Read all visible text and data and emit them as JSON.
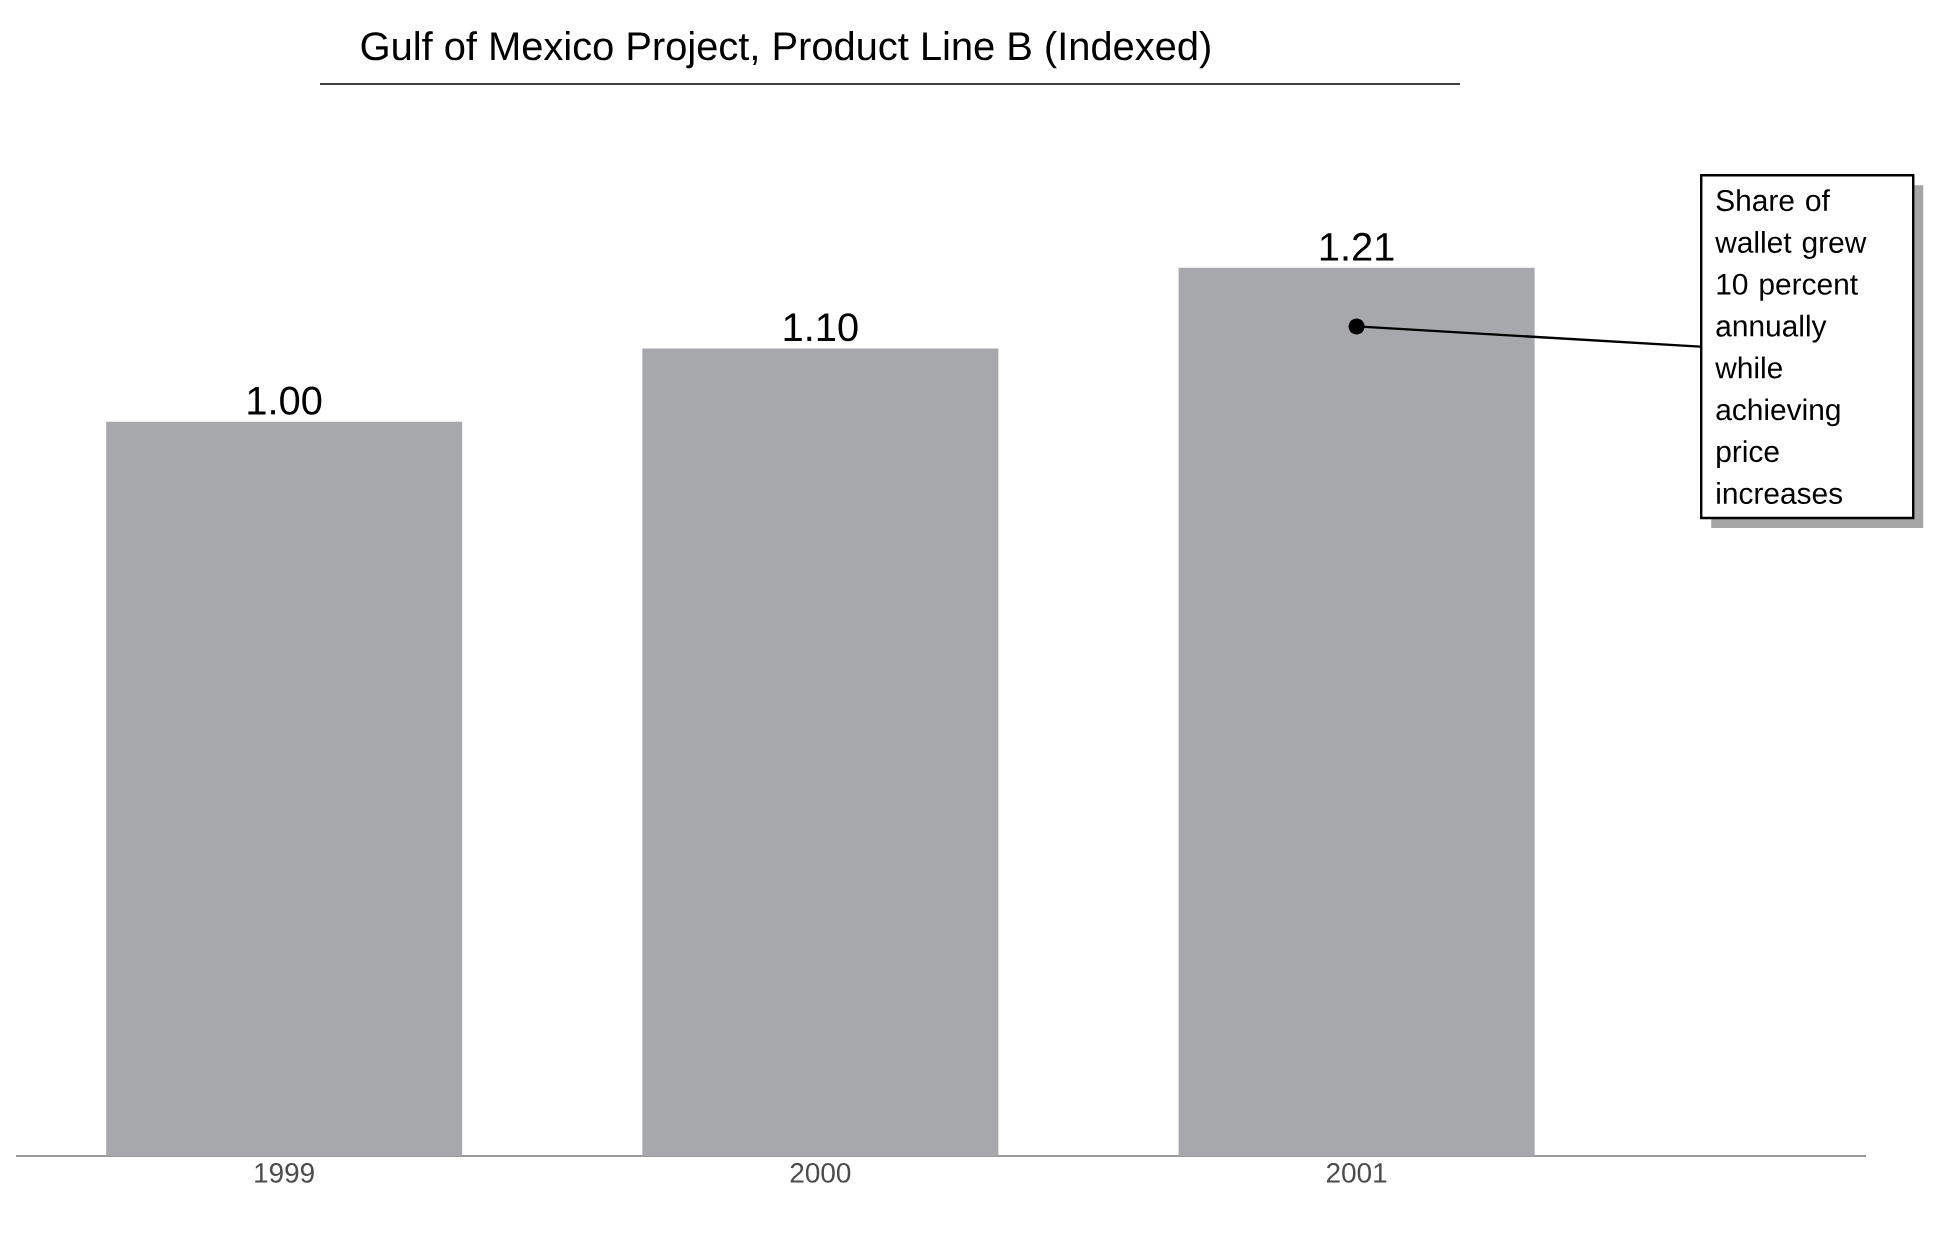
{
  "chart_data": {
    "type": "bar",
    "title": "Gulf of Mexico Project, Product Line B (Indexed)",
    "categories": [
      "1999",
      "2000",
      "2001"
    ],
    "values": [
      1.0,
      1.1,
      1.21
    ],
    "color": "#a7a8ab",
    "data_labels": true,
    "value_labels": [
      "1.00",
      "1.10",
      "1.21"
    ],
    "annotations": [
      {
        "text": "Share of wallet grew 10 percent annually while achieving price increases",
        "x": "2001",
        "y": 1.13
      }
    ]
  }
}
